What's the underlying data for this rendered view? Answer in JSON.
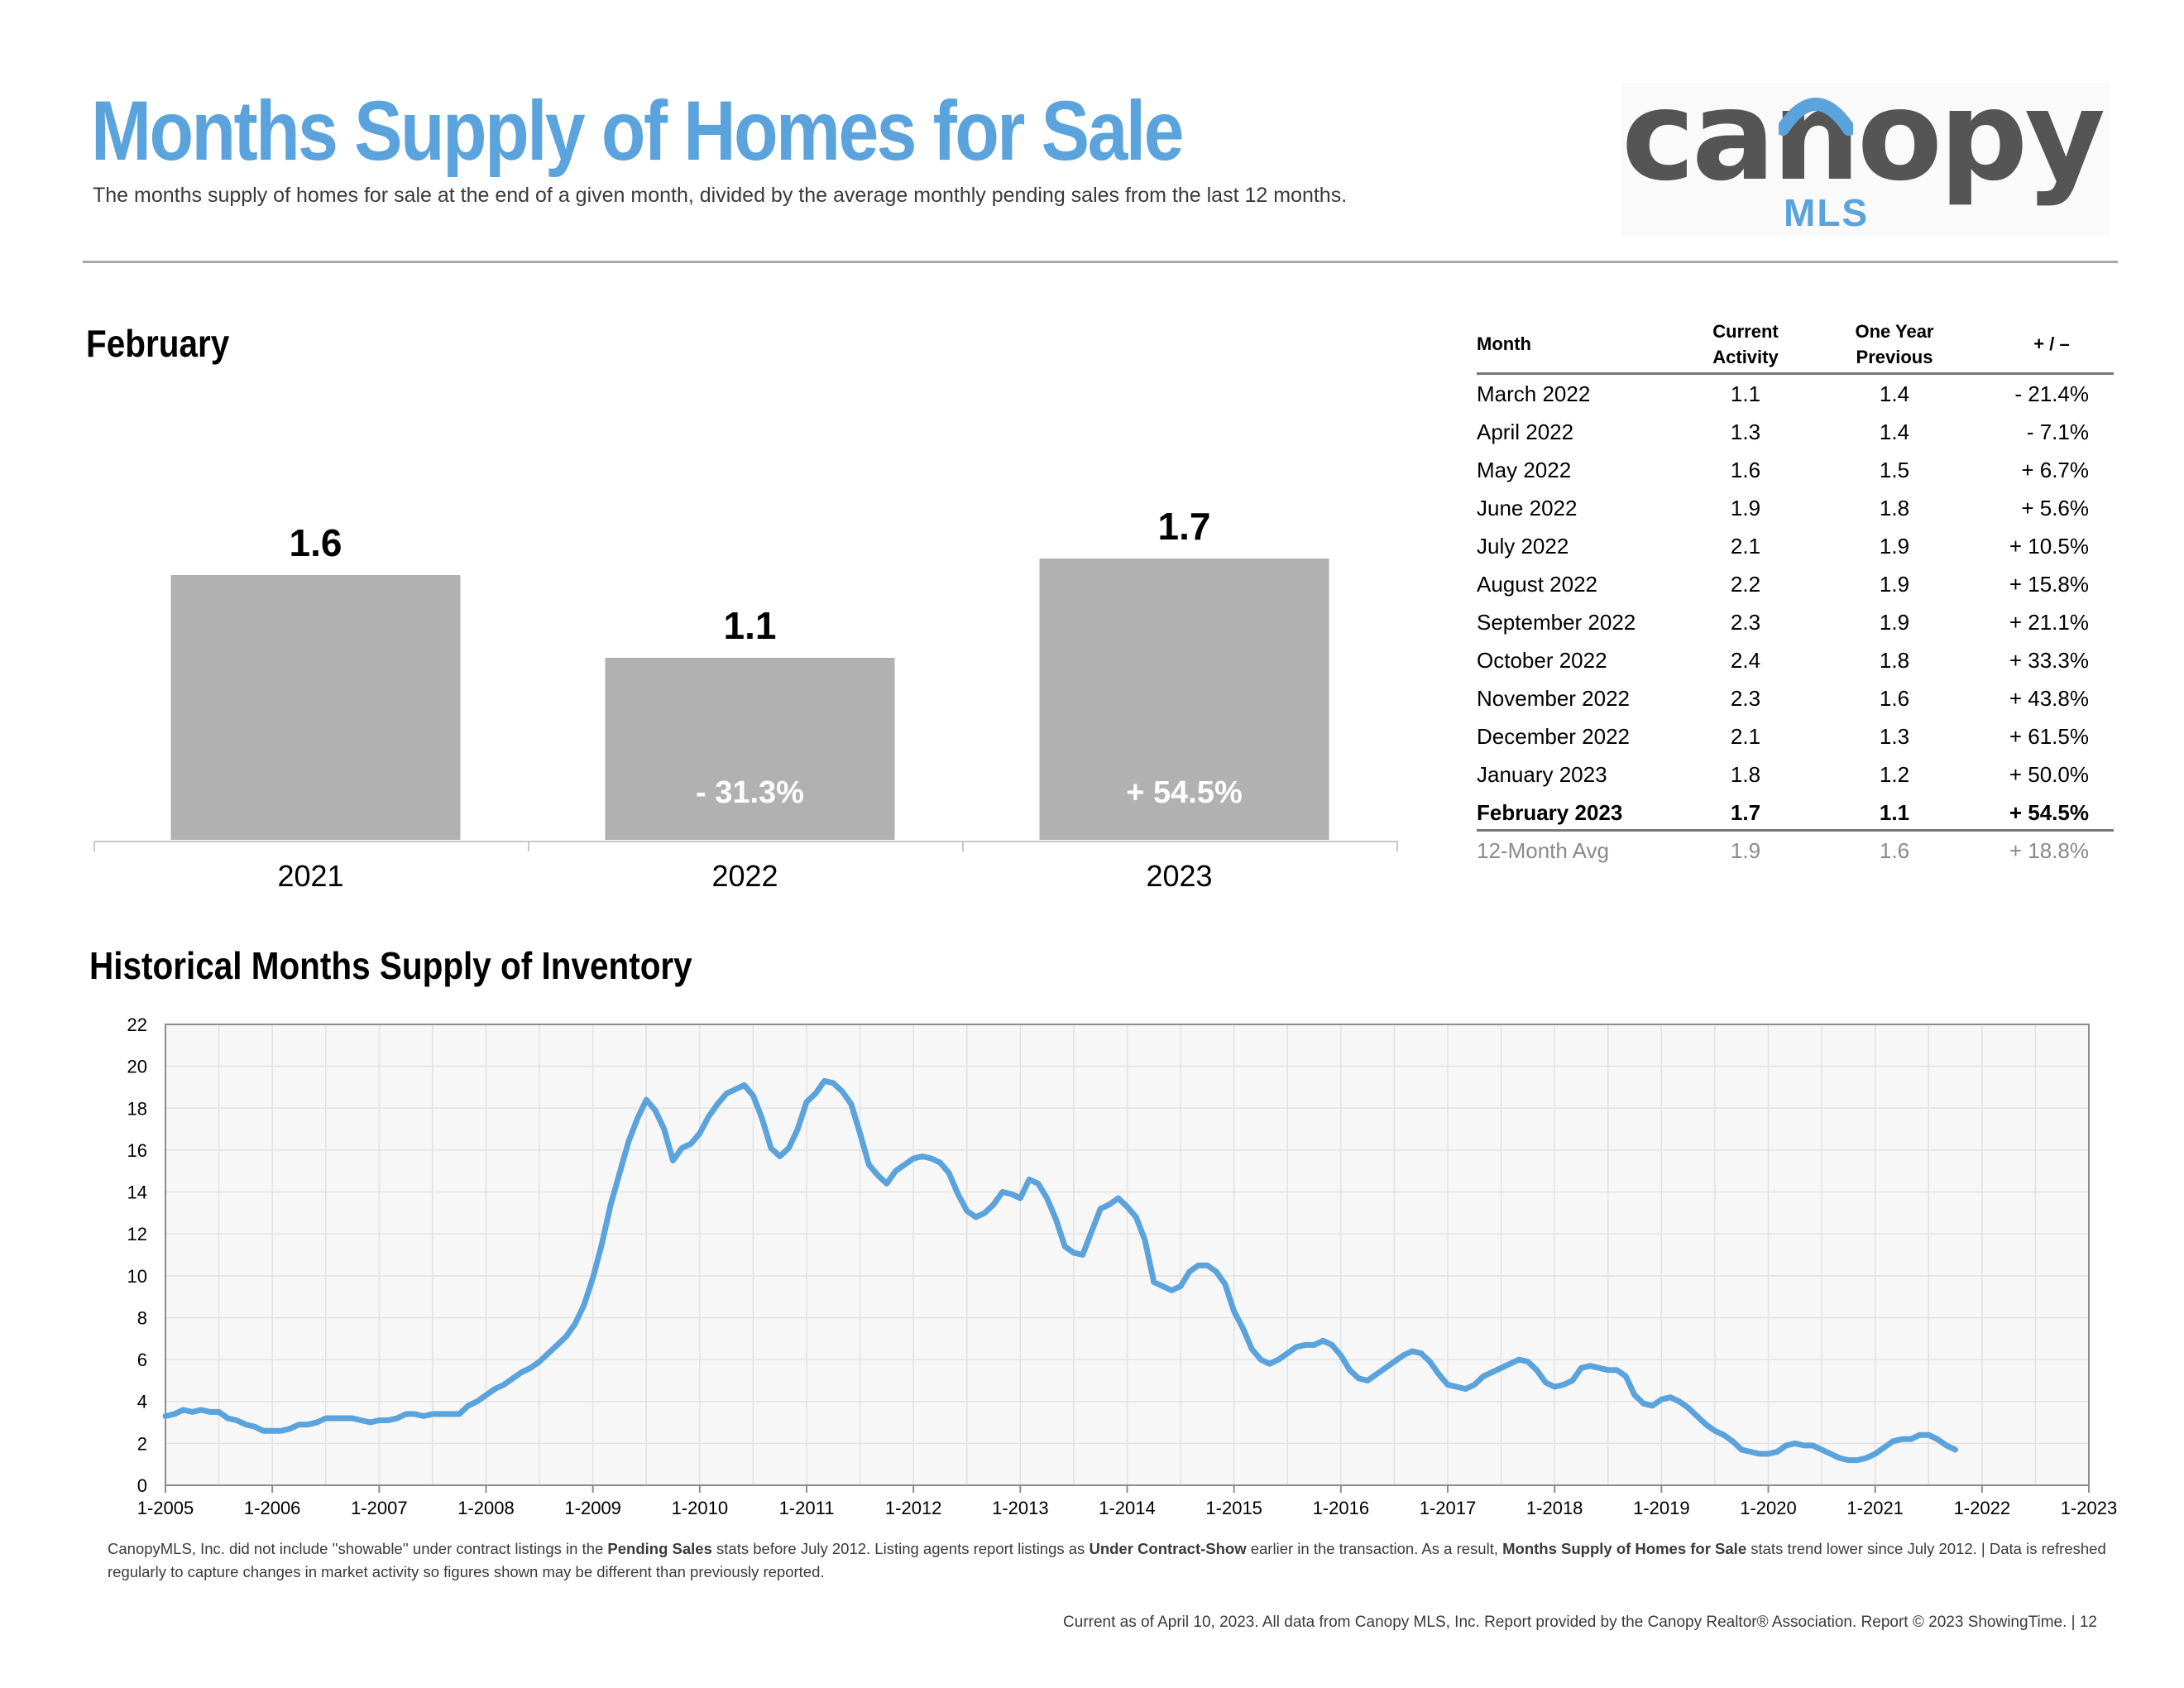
{
  "header": {
    "title": "Months Supply of Homes for Sale",
    "subtitle": "The months supply of homes for sale at the end of a given month, divided by the average monthly pending sales from the last 12 months."
  },
  "logo": {
    "word": "canopy",
    "sub": "MLS"
  },
  "colors": {
    "accent": "#5ba3dc",
    "bar": "#b0b1b0",
    "line": "#5ba3dc",
    "logo_gray": "#555555"
  },
  "month_chart_title": "February",
  "table": {
    "headers": {
      "month": "Month",
      "current_1": "Current",
      "current_2": "Activity",
      "prev_1": "One Year",
      "prev_2": "Previous",
      "change": "+ / –"
    },
    "rows": [
      {
        "month": "March 2022",
        "current": "1.1",
        "previous": "1.4",
        "change": "- 21.4%"
      },
      {
        "month": "April 2022",
        "current": "1.3",
        "previous": "1.4",
        "change": "- 7.1%"
      },
      {
        "month": "May 2022",
        "current": "1.6",
        "previous": "1.5",
        "change": "+ 6.7%"
      },
      {
        "month": "June 2022",
        "current": "1.9",
        "previous": "1.8",
        "change": "+ 5.6%"
      },
      {
        "month": "July 2022",
        "current": "2.1",
        "previous": "1.9",
        "change": "+ 10.5%"
      },
      {
        "month": "August 2022",
        "current": "2.2",
        "previous": "1.9",
        "change": "+ 15.8%"
      },
      {
        "month": "September 2022",
        "current": "2.3",
        "previous": "1.9",
        "change": "+ 21.1%"
      },
      {
        "month": "October 2022",
        "current": "2.4",
        "previous": "1.8",
        "change": "+ 33.3%"
      },
      {
        "month": "November 2022",
        "current": "2.3",
        "previous": "1.6",
        "change": "+ 43.8%"
      },
      {
        "month": "December 2022",
        "current": "2.1",
        "previous": "1.3",
        "change": "+ 61.5%"
      },
      {
        "month": "January 2023",
        "current": "1.8",
        "previous": "1.2",
        "change": "+ 50.0%"
      }
    ],
    "highlight": {
      "month": "February 2023",
      "current": "1.7",
      "previous": "1.1",
      "change": "+ 54.5%"
    },
    "average": {
      "month": "12-Month Avg",
      "current": "1.9",
      "previous": "1.6",
      "change": "+ 18.8%"
    }
  },
  "historical_title": "Historical Months Supply of Inventory",
  "chart_data": [
    {
      "type": "bar",
      "title": "February",
      "categories": [
        "2021",
        "2022",
        "2023"
      ],
      "values": [
        1.6,
        1.1,
        1.7
      ],
      "value_labels": [
        "1.6",
        "1.1",
        "1.7"
      ],
      "change_labels": [
        "",
        "- 31.3%",
        "+ 54.5%"
      ],
      "ylim": [
        0,
        2.2
      ]
    },
    {
      "type": "line",
      "title": "Historical Months Supply of Inventory",
      "xlabel": "",
      "ylabel": "",
      "ylim": [
        0,
        22
      ],
      "yticks": [
        "0",
        "2",
        "4",
        "6",
        "8",
        "10",
        "12",
        "14",
        "16",
        "18",
        "20",
        "22"
      ],
      "xticks": [
        "1-2005",
        "1-2006",
        "1-2007",
        "1-2008",
        "1-2009",
        "1-2010",
        "1-2011",
        "1-2012",
        "1-2013",
        "1-2014",
        "1-2015",
        "1-2016",
        "1-2017",
        "1-2018",
        "1-2019",
        "1-2020",
        "1-2021",
        "1-2022",
        "1-2023"
      ],
      "grid": true,
      "series": [
        {
          "x_start": "1-2005",
          "frequency": "monthly",
          "values": [
            3.3,
            3.4,
            3.6,
            3.5,
            3.6,
            3.5,
            3.5,
            3.2,
            3.1,
            2.9,
            2.8,
            2.6,
            2.6,
            2.6,
            2.7,
            2.9,
            2.9,
            3.0,
            3.2,
            3.2,
            3.2,
            3.2,
            3.1,
            3.0,
            3.1,
            3.1,
            3.2,
            3.4,
            3.4,
            3.3,
            3.4,
            3.4,
            3.4,
            3.4,
            3.8,
            4.0,
            4.3,
            4.6,
            4.8,
            5.1,
            5.4,
            5.6,
            5.9,
            6.3,
            6.7,
            7.1,
            7.7,
            8.6,
            9.9,
            11.5,
            13.4,
            14.9,
            16.4,
            17.5,
            18.4,
            17.9,
            17.0,
            15.5,
            16.1,
            16.3,
            16.8,
            17.6,
            18.2,
            18.7,
            18.9,
            19.1,
            18.6,
            17.5,
            16.1,
            15.7,
            16.1,
            17.0,
            18.3,
            18.7,
            19.3,
            19.2,
            18.8,
            18.2,
            16.8,
            15.3,
            14.8,
            14.4,
            15.0,
            15.3,
            15.6,
            15.7,
            15.6,
            15.4,
            14.9,
            13.9,
            13.1,
            12.8,
            13.0,
            13.4,
            14.0,
            13.9,
            13.7,
            14.6,
            14.4,
            13.7,
            12.7,
            11.4,
            11.1,
            11.0,
            12.1,
            13.2,
            13.4,
            13.7,
            13.3,
            12.8,
            11.7,
            9.7,
            9.5,
            9.3,
            9.5,
            10.2,
            10.5,
            10.5,
            10.2,
            9.6,
            8.3,
            7.5,
            6.5,
            6.0,
            5.8,
            6.0,
            6.3,
            6.6,
            6.7,
            6.7,
            6.9,
            6.7,
            6.2,
            5.5,
            5.1,
            5.0,
            5.3,
            5.6,
            5.9,
            6.2,
            6.4,
            6.3,
            5.9,
            5.3,
            4.8,
            4.7,
            4.6,
            4.8,
            5.2,
            5.4,
            5.6,
            5.8,
            6.0,
            5.9,
            5.5,
            4.9,
            4.7,
            4.8,
            5.0,
            5.6,
            5.7,
            5.6,
            5.5,
            5.5,
            5.2,
            4.3,
            3.9,
            3.8,
            4.1,
            4.2,
            4.0,
            3.7,
            3.3,
            2.9,
            2.6,
            2.4,
            2.1,
            1.7,
            1.6,
            1.5,
            1.5,
            1.6,
            1.9,
            2.0,
            1.9,
            1.9,
            1.7,
            1.5,
            1.3,
            1.2,
            1.2,
            1.3,
            1.5,
            1.8,
            2.1,
            2.2,
            2.2,
            2.4,
            2.4,
            2.2,
            1.9,
            1.7
          ]
        }
      ]
    }
  ],
  "footnote": {
    "p1": "CanopyMLS, Inc. did not include ''showable'' under contract listings in the ",
    "b1": "Pending Sales",
    "p2": " stats before July 2012. Listing agents report listings as ",
    "b2": "Under Contract-Show",
    "p3": " earlier in the transaction. As a result, ",
    "b3": "Months Supply of Homes for Sale",
    "p4": " stats trend lower since July 2012.  |  Data is refreshed regularly to capture changes in market activity so figures shown may be different than previously reported."
  },
  "footer": "Current as of April 10, 2023. All data from Canopy MLS, Inc. Report provided by the Canopy Realtor® Association. Report © 2023 ShowingTime.  |  12"
}
